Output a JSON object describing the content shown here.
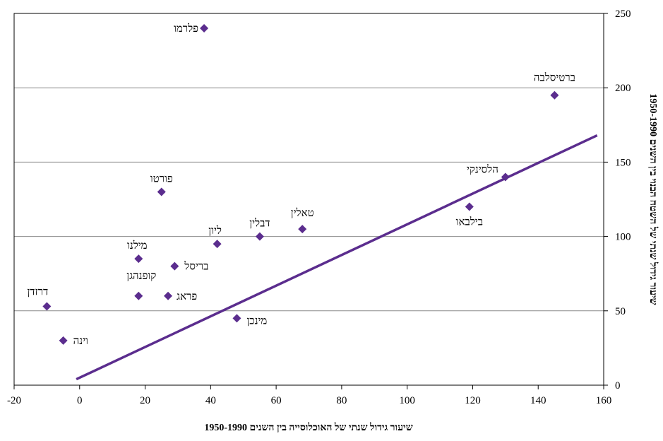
{
  "chart_data": {
    "type": "scatter",
    "xlabel": "שיעור גידול שנתי של האוכלוסייה בין השנים 1950-1990",
    "ylabel": "שיעור גידול שנתי של השטח הבנוי בין השנים 1950-1990",
    "xlim": [
      -20,
      160
    ],
    "ylim": [
      0,
      250
    ],
    "x_ticks": [
      "-20",
      "0",
      "20",
      "40",
      "60",
      "80",
      "100",
      "120",
      "140",
      "160"
    ],
    "y_ticks": [
      "0",
      "50",
      "100",
      "150",
      "200",
      "250"
    ],
    "y_axis_side": "right",
    "grid": "horizontal",
    "marker": "diamond",
    "marker_color": "#5b2d8e",
    "trendline": {
      "x": [
        -1,
        158
      ],
      "y": [
        4,
        168
      ],
      "color": "#5b2d8e"
    },
    "points": [
      {
        "label": "פלרמו",
        "x": 38,
        "y": 240
      },
      {
        "label": "ברטיסלבה",
        "x": 145,
        "y": 195
      },
      {
        "label": "הלסינקי",
        "x": 130,
        "y": 140
      },
      {
        "label": "בילבאו",
        "x": 119,
        "y": 120
      },
      {
        "label": "פורטו",
        "x": 25,
        "y": 130
      },
      {
        "label": "טאלין",
        "x": 68,
        "y": 105
      },
      {
        "label": "דבלין",
        "x": 55,
        "y": 100
      },
      {
        "label": "ליון",
        "x": 42,
        "y": 95
      },
      {
        "label": "מילנו",
        "x": 18,
        "y": 85
      },
      {
        "label": "בריסל",
        "x": 29,
        "y": 80
      },
      {
        "label": "קופנהגן",
        "x": 18,
        "y": 60
      },
      {
        "label": "פראג",
        "x": 27,
        "y": 60
      },
      {
        "label": "דרזדן",
        "x": -10,
        "y": 53
      },
      {
        "label": "מינכן",
        "x": 48,
        "y": 45
      },
      {
        "label": "וינה",
        "x": -5,
        "y": 30
      }
    ]
  }
}
